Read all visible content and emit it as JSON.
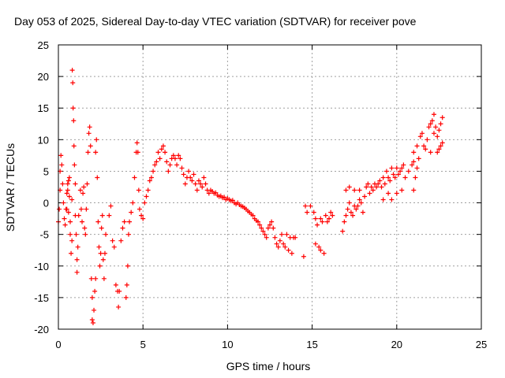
{
  "chart_data": {
    "type": "scatter",
    "title": "Day 053 of 2025, Sidereal Day-to-day VTEC variation (SDTVAR) for receiver pove",
    "xlabel": "GPS time / hours",
    "ylabel": "SDTVAR / TECUs",
    "xlim": [
      0,
      25
    ],
    "ylim": [
      -20,
      25
    ],
    "xticks": [
      0,
      5,
      10,
      15,
      20,
      25
    ],
    "yticks": [
      -20,
      -15,
      -10,
      -5,
      0,
      5,
      10,
      15,
      20,
      25
    ],
    "grid": true,
    "marker": "+",
    "colors": {
      "series": "#ff0000"
    },
    "series": [
      {
        "name": "SDTVAR",
        "points": [
          [
            0.0,
            -3.0
          ],
          [
            0.05,
            -1.0
          ],
          [
            0.1,
            2.0
          ],
          [
            0.1,
            5.0
          ],
          [
            0.15,
            7.5
          ],
          [
            0.2,
            6.0
          ],
          [
            0.25,
            3.0
          ],
          [
            0.3,
            0.0
          ],
          [
            0.35,
            -2.5
          ],
          [
            0.4,
            -3.5
          ],
          [
            0.45,
            -1.0
          ],
          [
            0.5,
            1.5
          ],
          [
            0.5,
            -1.0
          ],
          [
            0.55,
            3.0
          ],
          [
            0.55,
            2.0
          ],
          [
            0.6,
            3.5
          ],
          [
            0.6,
            -1.5
          ],
          [
            0.65,
            1.0
          ],
          [
            0.65,
            4.0
          ],
          [
            0.7,
            -3.0
          ],
          [
            0.7,
            -5.0
          ],
          [
            0.75,
            -8.0
          ],
          [
            0.8,
            -6.0
          ],
          [
            0.8,
            0.5
          ],
          [
            0.82,
            21.0
          ],
          [
            0.85,
            19.0
          ],
          [
            0.87,
            15.0
          ],
          [
            0.9,
            13.0
          ],
          [
            0.92,
            9.0
          ],
          [
            0.95,
            6.0
          ],
          [
            1.0,
            3.0
          ],
          [
            1.0,
            -2.0
          ],
          [
            1.05,
            -5.0
          ],
          [
            1.1,
            -9.0
          ],
          [
            1.1,
            -11.0
          ],
          [
            1.15,
            -7.0
          ],
          [
            1.2,
            -2.0
          ],
          [
            1.3,
            2.0
          ],
          [
            1.35,
            -1.0
          ],
          [
            1.4,
            -3.0
          ],
          [
            1.45,
            1.5
          ],
          [
            1.5,
            2.5
          ],
          [
            1.55,
            -4.0
          ],
          [
            1.6,
            -5.0
          ],
          [
            1.65,
            -1.0
          ],
          [
            1.7,
            3.0
          ],
          [
            1.75,
            8.0
          ],
          [
            1.8,
            11.0
          ],
          [
            1.85,
            12.0
          ],
          [
            1.9,
            9.0
          ],
          [
            1.95,
            -12.0
          ],
          [
            2.0,
            -15.0
          ],
          [
            2.0,
            -18.5
          ],
          [
            2.05,
            -19.0
          ],
          [
            2.1,
            -17.0
          ],
          [
            2.15,
            -14.0
          ],
          [
            2.2,
            -12.0
          ],
          [
            2.2,
            8.0
          ],
          [
            2.25,
            10.0
          ],
          [
            2.3,
            4.0
          ],
          [
            2.35,
            -3.0
          ],
          [
            2.4,
            -7.0
          ],
          [
            2.45,
            -10.0
          ],
          [
            2.5,
            -8.0
          ],
          [
            2.55,
            -4.0
          ],
          [
            2.6,
            -2.0
          ],
          [
            2.65,
            -9.0
          ],
          [
            2.7,
            -12.0
          ],
          [
            2.75,
            -8.0
          ],
          [
            2.8,
            -5.0
          ],
          [
            3.0,
            -2.0
          ],
          [
            3.1,
            -0.5
          ],
          [
            3.2,
            -6.0
          ],
          [
            3.3,
            -7.0
          ],
          [
            3.4,
            -13.0
          ],
          [
            3.5,
            -14.0
          ],
          [
            3.55,
            -16.5
          ],
          [
            3.6,
            -14.0
          ],
          [
            3.7,
            -6.0
          ],
          [
            3.8,
            -4.0
          ],
          [
            3.9,
            -3.0
          ],
          [
            4.0,
            -15.0
          ],
          [
            4.05,
            -13.0
          ],
          [
            4.1,
            -10.0
          ],
          [
            4.15,
            -5.0
          ],
          [
            4.2,
            -3.0
          ],
          [
            4.3,
            -1.5
          ],
          [
            4.4,
            0.0
          ],
          [
            4.5,
            4.0
          ],
          [
            4.6,
            8.0
          ],
          [
            4.65,
            9.5
          ],
          [
            4.7,
            8.0
          ],
          [
            4.75,
            2.0
          ],
          [
            4.8,
            -1.0
          ],
          [
            4.9,
            -2.0
          ],
          [
            5.0,
            -2.5
          ],
          [
            5.1,
            0.0
          ],
          [
            5.2,
            1.0
          ],
          [
            5.3,
            2.0
          ],
          [
            5.4,
            3.5
          ],
          [
            5.5,
            4.0
          ],
          [
            5.6,
            5.0
          ],
          [
            5.7,
            6.0
          ],
          [
            5.8,
            6.5
          ],
          [
            5.9,
            8.0
          ],
          [
            6.0,
            7.0
          ],
          [
            6.1,
            8.5
          ],
          [
            6.2,
            9.0
          ],
          [
            6.3,
            8.0
          ],
          [
            6.4,
            6.5
          ],
          [
            6.5,
            5.0
          ],
          [
            6.6,
            6.0
          ],
          [
            6.7,
            7.0
          ],
          [
            6.8,
            7.5
          ],
          [
            6.9,
            7.0
          ],
          [
            7.0,
            6.0
          ],
          [
            7.1,
            7.5
          ],
          [
            7.2,
            7.0
          ],
          [
            7.3,
            5.5
          ],
          [
            7.4,
            4.5
          ],
          [
            7.5,
            3.0
          ],
          [
            7.6,
            4.0
          ],
          [
            7.7,
            5.0
          ],
          [
            7.8,
            4.0
          ],
          [
            7.9,
            3.5
          ],
          [
            8.0,
            4.5
          ],
          [
            8.1,
            3.0
          ],
          [
            8.2,
            2.0
          ],
          [
            8.3,
            3.5
          ],
          [
            8.4,
            3.0
          ],
          [
            8.5,
            2.5
          ],
          [
            8.6,
            4.0
          ],
          [
            8.7,
            3.0
          ],
          [
            8.8,
            2.0
          ],
          [
            8.9,
            1.5
          ],
          [
            9.0,
            2.0
          ],
          [
            9.1,
            1.8
          ],
          [
            9.2,
            1.5
          ],
          [
            9.3,
            1.6
          ],
          [
            9.4,
            1.2
          ],
          [
            9.5,
            1.0
          ],
          [
            9.6,
            1.1
          ],
          [
            9.7,
            0.8
          ],
          [
            9.8,
            0.9
          ],
          [
            9.9,
            0.5
          ],
          [
            10.0,
            0.7
          ],
          [
            10.1,
            0.5
          ],
          [
            10.2,
            0.3
          ],
          [
            10.3,
            0.4
          ],
          [
            10.4,
            0.0
          ],
          [
            10.5,
            -0.2
          ],
          [
            10.6,
            0.0
          ],
          [
            10.7,
            -0.3
          ],
          [
            10.8,
            -0.5
          ],
          [
            10.9,
            -0.6
          ],
          [
            11.0,
            -0.8
          ],
          [
            11.1,
            -1.0
          ],
          [
            11.2,
            -1.3
          ],
          [
            11.3,
            -1.5
          ],
          [
            11.4,
            -1.8
          ],
          [
            11.5,
            -2.0
          ],
          [
            11.6,
            -2.5
          ],
          [
            11.7,
            -2.8
          ],
          [
            11.8,
            -3.0
          ],
          [
            11.9,
            -3.5
          ],
          [
            12.0,
            -4.0
          ],
          [
            12.1,
            -4.5
          ],
          [
            12.2,
            -5.0
          ],
          [
            12.3,
            -5.5
          ],
          [
            12.4,
            -4.0
          ],
          [
            12.5,
            -3.5
          ],
          [
            12.6,
            -3.0
          ],
          [
            12.7,
            -4.0
          ],
          [
            12.8,
            -5.5
          ],
          [
            12.9,
            -6.5
          ],
          [
            13.0,
            -7.0
          ],
          [
            13.1,
            -6.0
          ],
          [
            13.2,
            -5.0
          ],
          [
            13.3,
            -6.5
          ],
          [
            13.4,
            -7.0
          ],
          [
            13.5,
            -5.0
          ],
          [
            13.6,
            -7.5
          ],
          [
            13.7,
            -5.5
          ],
          [
            13.8,
            -8.0
          ],
          [
            13.9,
            -5.5
          ],
          [
            14.0,
            -5.5
          ],
          [
            14.5,
            -8.5
          ],
          [
            14.6,
            -0.5
          ],
          [
            14.7,
            -1.5
          ],
          [
            14.9,
            -0.5
          ],
          [
            15.1,
            -1.5
          ],
          [
            15.2,
            -2.5
          ],
          [
            15.2,
            -6.5
          ],
          [
            15.3,
            -3.5
          ],
          [
            15.4,
            -7.0
          ],
          [
            15.5,
            -2.5
          ],
          [
            15.5,
            -7.5
          ],
          [
            15.6,
            -3.0
          ],
          [
            15.7,
            -8.0
          ],
          [
            15.8,
            -2.0
          ],
          [
            15.9,
            -3.0
          ],
          [
            16.0,
            -2.5
          ],
          [
            16.1,
            -1.5
          ],
          [
            16.2,
            -2.0
          ],
          [
            16.8,
            -4.5
          ],
          [
            16.9,
            -3.0
          ],
          [
            17.0,
            -2.0
          ],
          [
            17.1,
            -1.0
          ],
          [
            17.2,
            0.0
          ],
          [
            17.3,
            -1.5
          ],
          [
            17.4,
            -2.0
          ],
          [
            17.5,
            -0.5
          ],
          [
            17.6,
            -1.0
          ],
          [
            17.7,
            -0.5
          ],
          [
            17.8,
            0.5
          ],
          [
            17.9,
            0.0
          ],
          [
            17.0,
            2.0
          ],
          [
            17.2,
            2.5
          ],
          [
            17.5,
            2.0
          ],
          [
            17.8,
            2.0
          ],
          [
            18.0,
            -1.5
          ],
          [
            18.1,
            1.0
          ],
          [
            18.2,
            2.5
          ],
          [
            18.3,
            3.0
          ],
          [
            18.4,
            1.5
          ],
          [
            18.5,
            2.5
          ],
          [
            18.6,
            2.0
          ],
          [
            18.7,
            3.0
          ],
          [
            18.8,
            2.5
          ],
          [
            18.9,
            3.0
          ],
          [
            19.0,
            3.5
          ],
          [
            19.1,
            2.5
          ],
          [
            19.2,
            4.0
          ],
          [
            19.3,
            3.0
          ],
          [
            19.4,
            5.0
          ],
          [
            19.5,
            4.0
          ],
          [
            19.6,
            3.5
          ],
          [
            19.7,
            5.5
          ],
          [
            19.8,
            4.5
          ],
          [
            19.9,
            4.0
          ],
          [
            20.0,
            5.5
          ],
          [
            20.1,
            4.5
          ],
          [
            20.2,
            5.0
          ],
          [
            20.3,
            5.5
          ],
          [
            20.4,
            6.0
          ],
          [
            19.2,
            0.5
          ],
          [
            19.5,
            1.5
          ],
          [
            19.7,
            0.5
          ],
          [
            20.0,
            1.5
          ],
          [
            20.3,
            2.0
          ],
          [
            20.5,
            4.0
          ],
          [
            20.7,
            5.0
          ],
          [
            20.9,
            6.0
          ],
          [
            21.0,
            6.5
          ],
          [
            21.0,
            2.0
          ],
          [
            21.1,
            4.0
          ],
          [
            21.2,
            5.5
          ],
          [
            21.3,
            7.0
          ],
          [
            21.0,
            8.0
          ],
          [
            21.2,
            9.0
          ],
          [
            21.4,
            10.5
          ],
          [
            21.5,
            11.0
          ],
          [
            21.6,
            9.0
          ],
          [
            21.7,
            8.5
          ],
          [
            21.8,
            10.0
          ],
          [
            21.9,
            12.0
          ],
          [
            22.0,
            12.5
          ],
          [
            22.1,
            13.0
          ],
          [
            22.2,
            14.0
          ],
          [
            22.3,
            12.0
          ],
          [
            22.4,
            10.5
          ],
          [
            22.5,
            11.5
          ],
          [
            22.6,
            12.5
          ],
          [
            22.7,
            13.5
          ],
          [
            22.4,
            8.0
          ],
          [
            22.5,
            8.5
          ],
          [
            22.6,
            9.0
          ],
          [
            22.7,
            9.5
          ],
          [
            22.2,
            11.0
          ],
          [
            22.0,
            8.0
          ]
        ]
      }
    ]
  }
}
